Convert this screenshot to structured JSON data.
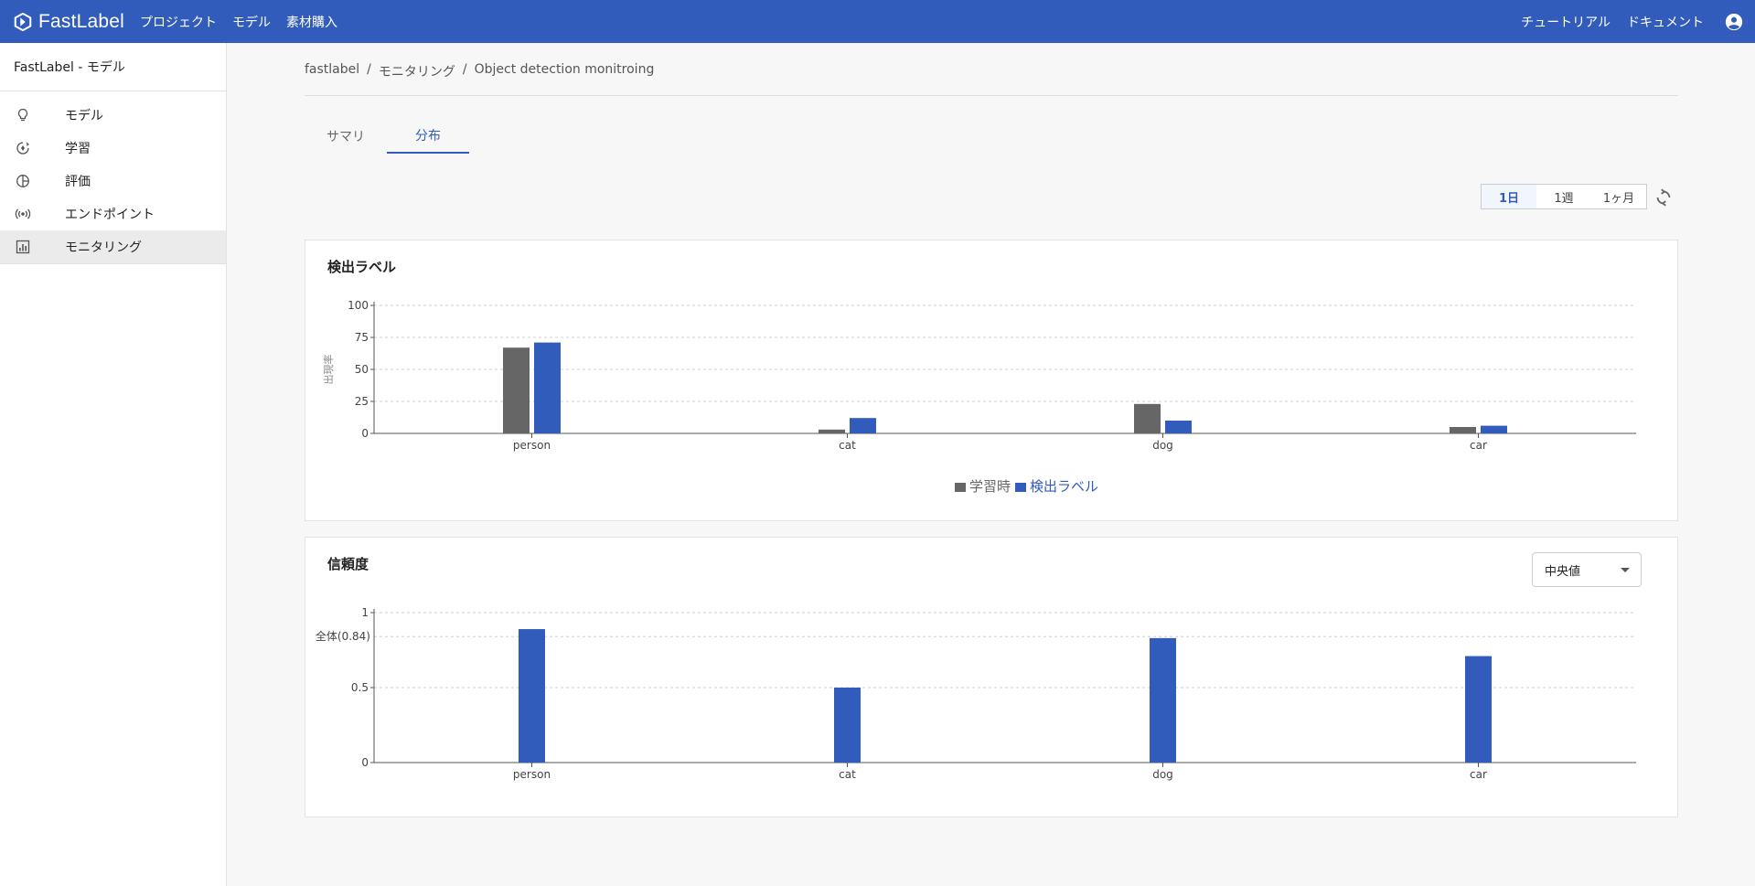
{
  "header": {
    "brand": "FastLabel",
    "nav": [
      "プロジェクト",
      "モデル",
      "素材購入"
    ],
    "right_links": [
      "チュートリアル",
      "ドキュメント"
    ]
  },
  "sidebar": {
    "title": "FastLabel - モデル",
    "items": [
      {
        "label": "モデル",
        "icon": "lightbulb-icon"
      },
      {
        "label": "学習",
        "icon": "training-icon"
      },
      {
        "label": "評価",
        "icon": "pie-chart-icon"
      },
      {
        "label": "エンドポイント",
        "icon": "broadcast-icon"
      },
      {
        "label": "モニタリング",
        "icon": "chart-icon",
        "active": true
      }
    ]
  },
  "breadcrumb": [
    "fastlabel",
    "モニタリング",
    "Object detection monitroing"
  ],
  "tabs": [
    {
      "label": "サマリ",
      "active": false
    },
    {
      "label": "分布",
      "active": true
    }
  ],
  "range": {
    "options": [
      "1日",
      "1週",
      "1ヶ月"
    ],
    "selected": "1日"
  },
  "colors": {
    "brand": "#325cbb",
    "training": "#666666",
    "detected": "#325cbb"
  },
  "chart_data": [
    {
      "type": "bar",
      "title": "検出ラベル",
      "ylabel": "出現率",
      "xlabel": "",
      "ylim": [
        0,
        100
      ],
      "yticks": [
        "0",
        "25",
        "50",
        "75",
        "100"
      ],
      "grid": true,
      "legend_position": "bottom",
      "categories": [
        "person",
        "cat",
        "dog",
        "car"
      ],
      "series": [
        {
          "name": "学習時",
          "color": "#666666",
          "values": [
            67,
            3,
            23,
            5
          ]
        },
        {
          "name": "検出ラベル",
          "color": "#325cbb",
          "values": [
            71,
            12,
            10,
            6
          ]
        }
      ]
    },
    {
      "type": "bar",
      "title": "信頼度",
      "ylabel": "",
      "xlabel": "",
      "ylim": [
        0,
        1
      ],
      "yticks": [
        "0",
        "0.5",
        "1"
      ],
      "reference_line": {
        "label": "全体(0.84)",
        "value": 0.84
      },
      "grid": true,
      "select_value": "中央値",
      "categories": [
        "person",
        "cat",
        "dog",
        "car"
      ],
      "series": [
        {
          "color": "#325cbb",
          "values": [
            0.89,
            0.5,
            0.83,
            0.71
          ]
        }
      ]
    }
  ]
}
